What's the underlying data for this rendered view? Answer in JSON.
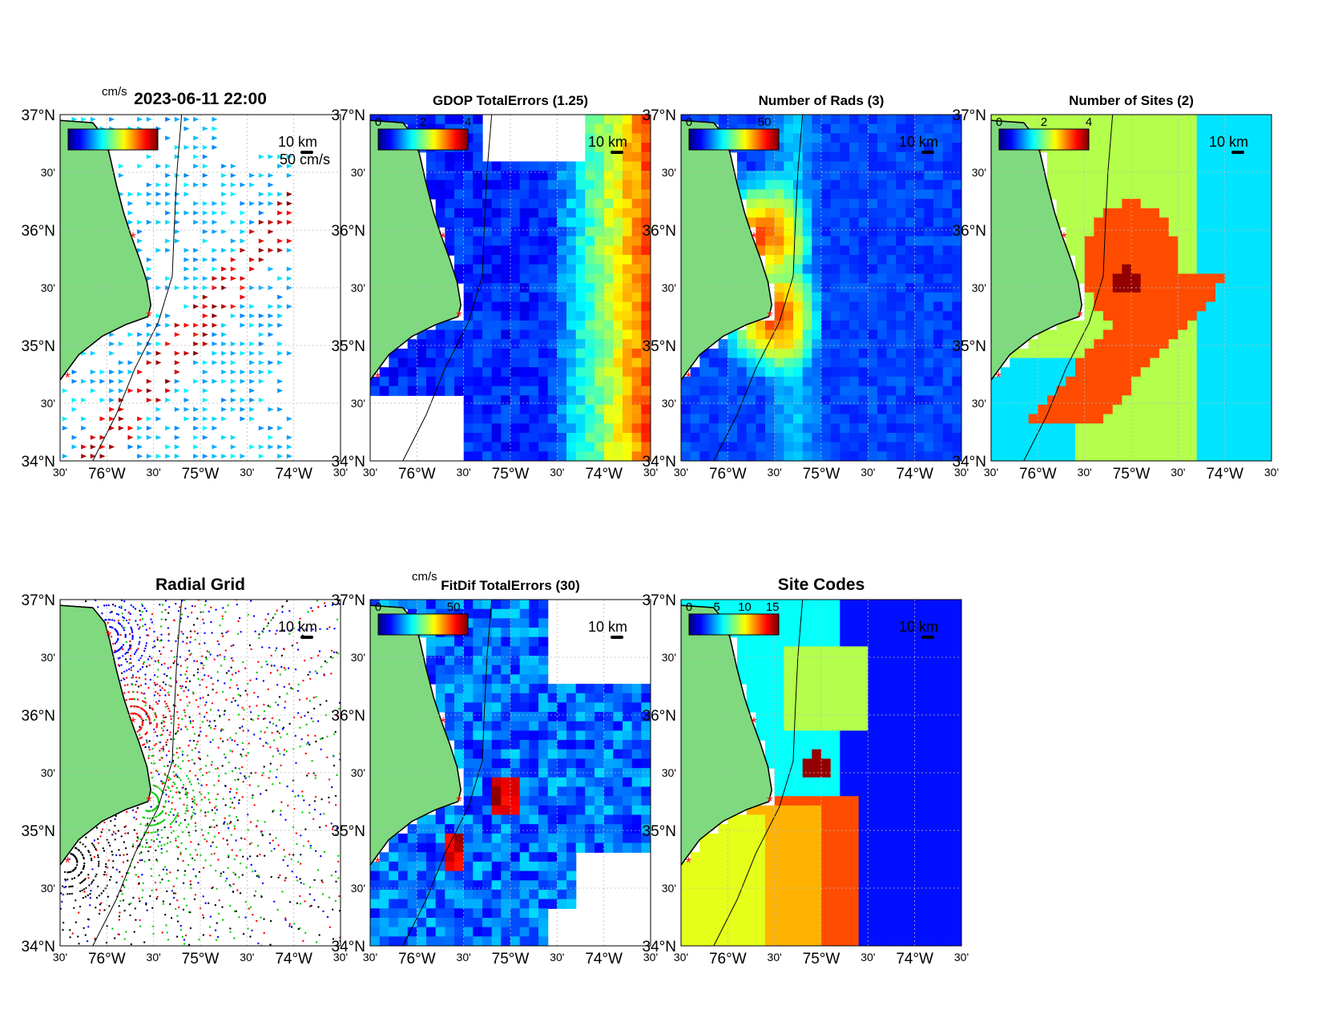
{
  "timestamp": "2023-06-11 22:00",
  "panels": [
    {
      "id": "current-vectors",
      "title": "",
      "has_map": true,
      "colorbar": {
        "unit": "cm/s",
        "ticks": []
      },
      "scale_label": "10 km",
      "vector_scale_label": "50 cm/s",
      "contours": [
        "100",
        "100"
      ],
      "colormap": "jet"
    },
    {
      "id": "gdop",
      "title": "GDOP TotalErrors (1.25)",
      "colorbar": {
        "unit": "",
        "ticks": [
          "0",
          "2",
          "4"
        ]
      },
      "scale_label": "10 km",
      "contours": [
        "1.25",
        "1.25",
        "1.25",
        "1.25"
      ],
      "colormap": "jet"
    },
    {
      "id": "num-rads",
      "title": "Number of Rads (3)",
      "colorbar": {
        "unit": "",
        "ticks": [
          "0",
          "50"
        ]
      },
      "scale_label": "10 km",
      "contours": [
        "3",
        "3",
        "3"
      ],
      "colormap": "jet"
    },
    {
      "id": "num-sites",
      "title": "Number of Sites (2)",
      "colorbar": {
        "unit": "",
        "ticks": [
          "0",
          "2",
          "4"
        ]
      },
      "scale_label": "10 km",
      "contours": [
        "2",
        "2",
        "2",
        "2",
        "2",
        "2"
      ],
      "colormap": "jet"
    },
    {
      "id": "radial-grid",
      "title": "Radial Grid",
      "colorbar": null,
      "scale_label": "10 km",
      "contours": [
        "100",
        "100"
      ],
      "site_colors": [
        "#0000ff",
        "#ff0000",
        "#00cc00",
        "#000000"
      ]
    },
    {
      "id": "fitdif",
      "title": "FitDif TotalErrors (30)",
      "colorbar": {
        "unit": "cm/s",
        "ticks": [
          "0",
          "50"
        ]
      },
      "scale_label": "10 km",
      "contours": [
        "30",
        "30",
        "30",
        "30",
        "30"
      ],
      "colormap": "jet"
    },
    {
      "id": "site-codes",
      "title": "Site Codes",
      "colorbar": {
        "unit": "",
        "ticks": [
          "0",
          "5",
          "10",
          "15"
        ]
      },
      "scale_label": "10 km",
      "contours": [],
      "colormap": "jet"
    }
  ],
  "axes": {
    "y_ticks": [
      {
        "label": "37°N",
        "major": true,
        "lat": 37.0
      },
      {
        "label": "30'",
        "major": false,
        "lat": 36.5
      },
      {
        "label": "36°N",
        "major": true,
        "lat": 36.0
      },
      {
        "label": "30'",
        "major": false,
        "lat": 35.5
      },
      {
        "label": "35°N",
        "major": true,
        "lat": 35.0
      },
      {
        "label": "30'",
        "major": false,
        "lat": 34.5
      },
      {
        "label": "34°N",
        "major": true,
        "lat": 34.0
      }
    ],
    "x_ticks": [
      {
        "label": "30'",
        "major": false,
        "lon": -76.5
      },
      {
        "label": "76°W",
        "major": true,
        "lon": -76.0
      },
      {
        "label": "30'",
        "major": false,
        "lon": -75.5
      },
      {
        "label": "75°W",
        "major": true,
        "lon": -75.0
      },
      {
        "label": "30'",
        "major": false,
        "lon": -74.5
      },
      {
        "label": "74°W",
        "major": true,
        "lon": -74.0
      },
      {
        "label": "30'",
        "major": false,
        "lon": -73.5
      }
    ],
    "lat_range": [
      34.0,
      37.0
    ],
    "lon_range": [
      -76.5,
      -73.5
    ]
  },
  "chart_data": [
    {
      "type": "heatmap",
      "title": "",
      "description_units": "cm/s",
      "xlim": [
        -76.5,
        -73.5
      ],
      "ylim": [
        34.0,
        37.0
      ],
      "colorbar_label": "cm/s",
      "overlay": "current vectors",
      "vector_scale": "50 cm/s"
    },
    {
      "type": "heatmap",
      "title": "GDOP TotalErrors (1.25)",
      "xlim": [
        -76.5,
        -73.5
      ],
      "ylim": [
        34.0,
        37.0
      ],
      "colorbar_ticks": [
        0,
        2,
        4
      ],
      "contour_level": 1.25
    },
    {
      "type": "heatmap",
      "title": "Number of Rads (3)",
      "xlim": [
        -76.5,
        -73.5
      ],
      "ylim": [
        34.0,
        37.0
      ],
      "colorbar_ticks": [
        0,
        50
      ],
      "contour_level": 3
    },
    {
      "type": "heatmap",
      "title": "Number of Sites (2)",
      "xlim": [
        -76.5,
        -73.5
      ],
      "ylim": [
        34.0,
        37.0
      ],
      "colorbar_ticks": [
        0,
        2,
        4
      ],
      "contour_level": 2
    },
    {
      "type": "scatter",
      "title": "Radial Grid",
      "xlim": [
        -76.5,
        -73.5
      ],
      "ylim": [
        34.0,
        37.0
      ],
      "sites": [
        {
          "lon": -75.98,
          "lat": 36.68,
          "color": "#0000ff"
        },
        {
          "lon": -75.72,
          "lat": 35.93,
          "color": "#ff0000"
        },
        {
          "lon": -75.55,
          "lat": 35.25,
          "color": "#00cc00"
        },
        {
          "lon": -76.4,
          "lat": 34.72,
          "color": "#000000"
        }
      ]
    },
    {
      "type": "heatmap",
      "title": "FitDif TotalErrors (30)",
      "xlim": [
        -76.5,
        -73.5
      ],
      "ylim": [
        34.0,
        37.0
      ],
      "colorbar_label": "cm/s",
      "colorbar_ticks": [
        0,
        50
      ],
      "contour_level": 30
    },
    {
      "type": "heatmap",
      "title": "Site Codes",
      "xlim": [
        -76.5,
        -73.5
      ],
      "ylim": [
        34.0,
        37.0
      ],
      "colorbar_ticks": [
        0,
        5,
        10,
        15
      ]
    }
  ]
}
